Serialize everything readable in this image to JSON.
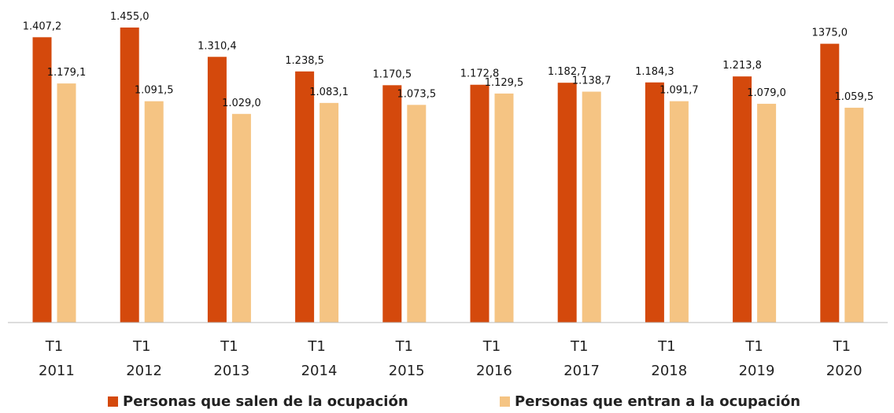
{
  "chart_data": {
    "type": "bar",
    "categories": [
      "T1 2011",
      "T1 2012",
      "T1 2013",
      "T1 2014",
      "T1 2015",
      "T1 2016",
      "T1 2017",
      "T1 2018",
      "T1 2019",
      "T1 2020"
    ],
    "series": [
      {
        "name": "Personas que salen de la ocupación",
        "color": "#d4490c",
        "values": [
          1407.2,
          1455.0,
          1310.4,
          1238.5,
          1170.5,
          1172.8,
          1182.7,
          1184.3,
          1213.8,
          1375.0
        ],
        "value_labels": [
          "1.407,2",
          "1.455,0",
          "1.310,4",
          "1.238,5",
          "1.170,5",
          "1.172,8",
          "1.182,7",
          "1.184,3",
          "1.213,8",
          "1375,0"
        ]
      },
      {
        "name": "Personas que entran a la ocupación",
        "color": "#f5c483",
        "values": [
          1179.1,
          1091.5,
          1029.0,
          1083.1,
          1073.5,
          1129.5,
          1138.7,
          1091.7,
          1079.0,
          1059.5
        ],
        "value_labels": [
          "1.179,1",
          "1.091,5",
          "1.029,0",
          "1.083,1",
          "1.073,5",
          "1.129,5",
          "1.138,7",
          "1.091,7",
          "1.079,0",
          "1.059,5"
        ]
      }
    ],
    "legend": "bottom"
  }
}
